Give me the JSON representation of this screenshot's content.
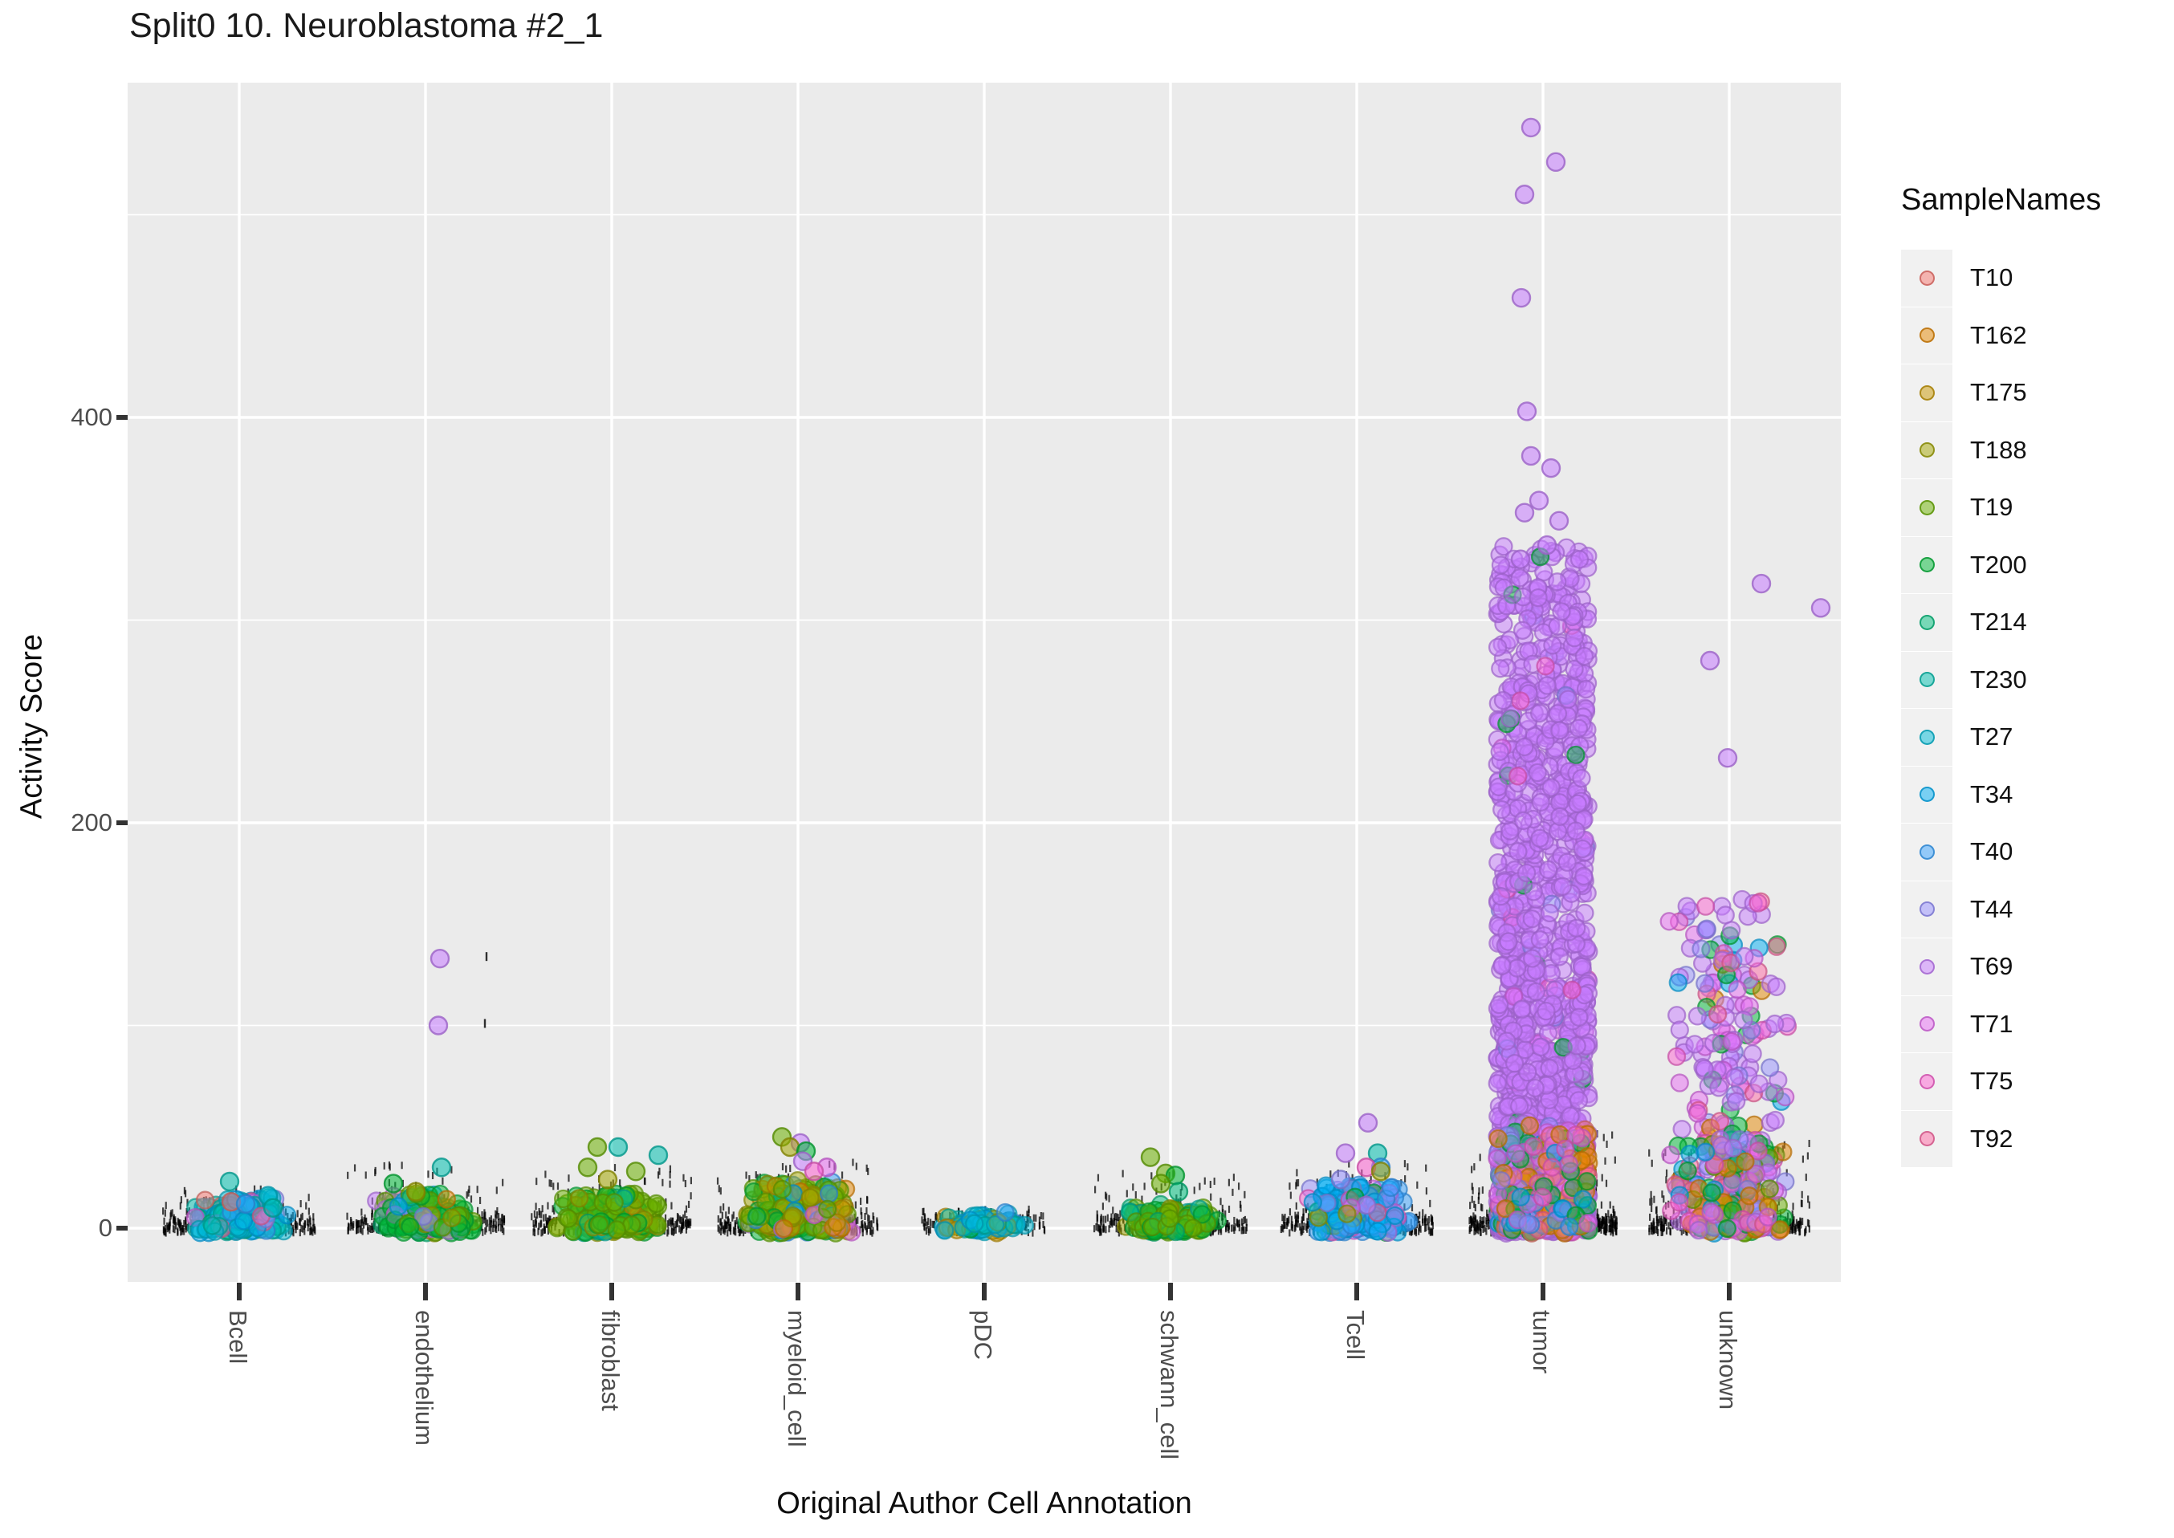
{
  "chart_data": {
    "type": "scatter",
    "subtype": "jittered-strip-plot",
    "title": "Split0 10. Neuroblastoma #2_1",
    "xlabel": "Original Author Cell Annotation",
    "ylabel": "Activity Score",
    "legend_title": "SampleNames",
    "ylim": [
      -27,
      565
    ],
    "y_tick_labels": [
      "0",
      "200",
      "400"
    ],
    "y_major_gridlines": [
      0,
      200,
      400
    ],
    "y_minor_gridlines": [
      100,
      300,
      500
    ],
    "panel_background": "#EBEBEB",
    "gridline_color": "#FFFFFF",
    "tick_color": "#333333",
    "rug_point_color": "#000000",
    "point_alpha": 0.5,
    "categories": [
      "Bcell",
      "endothelium",
      "fibroblast",
      "myeloid_cell",
      "pDC",
      "schwann_cell",
      "Tcell",
      "tumor",
      "unknown"
    ],
    "samples": [
      {
        "name": "T10",
        "color": "#F8766D"
      },
      {
        "name": "T162",
        "color": "#E58700"
      },
      {
        "name": "T175",
        "color": "#C99800"
      },
      {
        "name": "T188",
        "color": "#A3A500"
      },
      {
        "name": "T19",
        "color": "#6BB100"
      },
      {
        "name": "T200",
        "color": "#00BA38"
      },
      {
        "name": "T214",
        "color": "#00BF7D"
      },
      {
        "name": "T230",
        "color": "#00C0AF"
      },
      {
        "name": "T27",
        "color": "#00BCD8"
      },
      {
        "name": "T34",
        "color": "#00B0F6"
      },
      {
        "name": "T40",
        "color": "#35A2FF"
      },
      {
        "name": "T44",
        "color": "#9590FF"
      },
      {
        "name": "T69",
        "color": "#C77CFF"
      },
      {
        "name": "T71",
        "color": "#E76BF3"
      },
      {
        "name": "T75",
        "color": "#FD61D1"
      },
      {
        "name": "T92",
        "color": "#FF67A4"
      }
    ],
    "groups": [
      {
        "category": "Bcell",
        "layers": [
          {
            "n": 170,
            "ymax": 14,
            "power": 2.2,
            "halfwidth": 62,
            "xdist": "tri",
            "mix": {
              "T27": 0.3,
              "T230": 0.22,
              "T34": 0.18,
              "T40": 0.08,
              "T214": 0.06,
              "T44": 0.05,
              "T92": 0.04,
              "T10": 0.04,
              "T71": 0.03
            }
          }
        ],
        "outliers": [
          {
            "sample": "T230",
            "value": 23,
            "dx": -12
          },
          {
            "sample": "T27",
            "value": 16,
            "dx": 36
          },
          {
            "sample": "T34",
            "value": 14,
            "dx": -4
          },
          {
            "sample": "T10",
            "value": 13,
            "dx": -10
          },
          {
            "sample": "T40",
            "value": 12,
            "dx": 8
          },
          {
            "sample": "T230",
            "value": 10,
            "dx": 42
          }
        ],
        "rug": {
          "n": 260,
          "halfwidth": 95,
          "hair_max": 20
        },
        "rug_outliers": []
      },
      {
        "category": "endothelium",
        "layers": [
          {
            "n": 200,
            "ymax": 16,
            "power": 2.4,
            "halfwidth": 66,
            "xdist": "tri",
            "mix": {
              "T200": 0.42,
              "T19": 0.14,
              "T188": 0.08,
              "T69": 0.08,
              "T44": 0.07,
              "T34": 0.06,
              "T214": 0.06,
              "T10": 0.04,
              "T71": 0.03,
              "T162": 0.02
            }
          }
        ],
        "outliers": [
          {
            "sample": "T69",
            "value": 133,
            "dx": 18
          },
          {
            "sample": "T69",
            "value": 100,
            "dx": 16
          },
          {
            "sample": "T230",
            "value": 30,
            "dx": 20
          },
          {
            "sample": "T200",
            "value": 22,
            "dx": -40
          },
          {
            "sample": "T188",
            "value": 18,
            "dx": -12
          }
        ],
        "rug": {
          "n": 300,
          "halfwidth": 98,
          "hair_max": 32
        },
        "rug_outliers": [
          {
            "value": 134,
            "dx": 76
          },
          {
            "value": 101,
            "dx": 74
          }
        ]
      },
      {
        "category": "fibroblast",
        "layers": [
          {
            "n": 230,
            "ymax": 15,
            "power": 2.0,
            "halfwidth": 70,
            "xdist": "tri",
            "mix": {
              "T19": 0.5,
              "T200": 0.2,
              "T188": 0.14,
              "T230": 0.06,
              "T214": 0.06,
              "T175": 0.04
            }
          }
        ],
        "outliers": [
          {
            "sample": "T230",
            "value": 40,
            "dx": 8
          },
          {
            "sample": "T19",
            "value": 40,
            "dx": -18
          },
          {
            "sample": "T230",
            "value": 36,
            "dx": 58
          },
          {
            "sample": "T19",
            "value": 30,
            "dx": -30
          },
          {
            "sample": "T19",
            "value": 28,
            "dx": 30
          },
          {
            "sample": "T188",
            "value": 24,
            "dx": -5
          }
        ],
        "rug": {
          "n": 300,
          "halfwidth": 100,
          "hair_max": 30
        },
        "rug_outliers": []
      },
      {
        "category": "myeloid_cell",
        "layers": [
          {
            "n": 300,
            "ymax": 22,
            "power": 2.2,
            "halfwidth": 72,
            "xdist": "tri",
            "mix": {
              "T19": 0.28,
              "T188": 0.2,
              "T200": 0.14,
              "T162": 0.12,
              "T175": 0.08,
              "T34": 0.05,
              "T40": 0.05,
              "T69": 0.04,
              "T71": 0.04
            }
          }
        ],
        "outliers": [
          {
            "sample": "T19",
            "value": 45,
            "dx": -20
          },
          {
            "sample": "T69",
            "value": 42,
            "dx": 3
          },
          {
            "sample": "T188",
            "value": 40,
            "dx": -10
          },
          {
            "sample": "T200",
            "value": 38,
            "dx": 10
          },
          {
            "sample": "T69",
            "value": 33,
            "dx": 6
          },
          {
            "sample": "T71",
            "value": 30,
            "dx": 36
          },
          {
            "sample": "T75",
            "value": 28,
            "dx": 20
          }
        ],
        "rug": {
          "n": 340,
          "halfwidth": 100,
          "hair_max": 34
        },
        "rug_outliers": []
      },
      {
        "category": "pDC",
        "layers": [
          {
            "n": 90,
            "ymax": 6,
            "power": 1.8,
            "halfwidth": 55,
            "xdist": "tri",
            "mix": {
              "T27": 0.45,
              "T230": 0.12,
              "T188": 0.1,
              "T162": 0.08,
              "T34": 0.08,
              "T200": 0.06,
              "T175": 0.06,
              "T40": 0.05
            }
          }
        ],
        "outliers": [],
        "rug": {
          "n": 150,
          "halfwidth": 78,
          "hair_max": 10
        },
        "rug_outliers": []
      },
      {
        "category": "schwann_cell",
        "layers": [
          {
            "n": 180,
            "ymax": 10,
            "power": 2.2,
            "halfwidth": 62,
            "xdist": "tri",
            "mix": {
              "T19": 0.52,
              "T200": 0.26,
              "T214": 0.08,
              "T188": 0.08,
              "T230": 0.06
            }
          }
        ],
        "outliers": [
          {
            "sample": "T19",
            "value": 35,
            "dx": -25
          },
          {
            "sample": "T19",
            "value": 27,
            "dx": -6
          },
          {
            "sample": "T200",
            "value": 26,
            "dx": 6
          },
          {
            "sample": "T19",
            "value": 22,
            "dx": -12
          },
          {
            "sample": "T214",
            "value": 18,
            "dx": 10
          }
        ],
        "rug": {
          "n": 280,
          "halfwidth": 95,
          "hair_max": 28
        },
        "rug_outliers": []
      },
      {
        "category": "Tcell",
        "layers": [
          {
            "n": 260,
            "ymax": 20,
            "power": 2.2,
            "halfwidth": 66,
            "xdist": "tri",
            "mix": {
              "T34": 0.28,
              "T40": 0.26,
              "T71": 0.1,
              "T75": 0.08,
              "T44": 0.08,
              "T200": 0.08,
              "T188": 0.05,
              "T69": 0.04,
              "T92": 0.03
            }
          }
        ],
        "outliers": [
          {
            "sample": "T69",
            "value": 52,
            "dx": 14
          },
          {
            "sample": "T69",
            "value": 37,
            "dx": -14
          },
          {
            "sample": "T230",
            "value": 37,
            "dx": 26
          },
          {
            "sample": "T40",
            "value": 30,
            "dx": 30
          },
          {
            "sample": "T75",
            "value": 30,
            "dx": 12
          },
          {
            "sample": "T188",
            "value": 28,
            "dx": 30
          },
          {
            "sample": "T44",
            "value": 24,
            "dx": -20
          }
        ],
        "rug": {
          "n": 300,
          "halfwidth": 95,
          "hair_max": 32
        },
        "rug_outliers": []
      },
      {
        "category": "tumor",
        "layers": [
          {
            "n": 1500,
            "ymax": 335,
            "power": 2.0,
            "halfwidth": 57,
            "xdist": "uniform",
            "mix": {
              "T69": 0.96,
              "T71": 0.01,
              "T75": 0.01,
              "T200": 0.01,
              "T44": 0.01
            }
          },
          {
            "n": 260,
            "ymax": 50,
            "power": 1.7,
            "halfwidth": 57,
            "xdist": "uniform",
            "mix": {
              "T162": 0.2,
              "T71": 0.17,
              "T75": 0.14,
              "T200": 0.14,
              "T34": 0.08,
              "T40": 0.08,
              "T44": 0.07,
              "T92": 0.06,
              "T10": 0.06
            }
          }
        ],
        "outliers": [
          {
            "sample": "T69",
            "value": 543,
            "dx": -15
          },
          {
            "sample": "T69",
            "value": 526,
            "dx": 16
          },
          {
            "sample": "T69",
            "value": 510,
            "dx": -23
          },
          {
            "sample": "T69",
            "value": 459,
            "dx": -27
          },
          {
            "sample": "T69",
            "value": 403,
            "dx": -20
          },
          {
            "sample": "T69",
            "value": 381,
            "dx": -15
          },
          {
            "sample": "T69",
            "value": 375,
            "dx": 10
          },
          {
            "sample": "T69",
            "value": 359,
            "dx": -5
          },
          {
            "sample": "T69",
            "value": 353,
            "dx": -23
          },
          {
            "sample": "T69",
            "value": 349,
            "dx": 20
          },
          {
            "sample": "T69",
            "value": 337,
            "dx": 5
          },
          {
            "sample": "T69",
            "value": 330,
            "dx": -28
          }
        ],
        "rug": {
          "n": 560,
          "halfwidth": 92,
          "hair_max": 48
        },
        "rug_outliers": []
      },
      {
        "category": "unknown",
        "layers": [
          {
            "n": 270,
            "ymax": 162,
            "power": 1.7,
            "halfwidth": 82,
            "xdist": "tri",
            "mix": {
              "T69": 0.55,
              "T71": 0.13,
              "T75": 0.1,
              "T44": 0.07,
              "T200": 0.05,
              "T34": 0.04,
              "T92": 0.03,
              "T162": 0.03
            }
          },
          {
            "n": 170,
            "ymax": 45,
            "power": 1.8,
            "halfwidth": 80,
            "xdist": "tri",
            "mix": {
              "T162": 0.16,
              "T200": 0.16,
              "T71": 0.14,
              "T75": 0.12,
              "T34": 0.1,
              "T44": 0.08,
              "T92": 0.07,
              "T19": 0.07,
              "T69": 0.1
            }
          }
        ],
        "outliers": [
          {
            "sample": "T69",
            "value": 318,
            "dx": 40
          },
          {
            "sample": "T69",
            "value": 306,
            "dx": 114
          },
          {
            "sample": "T69",
            "value": 280,
            "dx": -24
          },
          {
            "sample": "T69",
            "value": 232,
            "dx": -2
          }
        ],
        "rug": {
          "n": 430,
          "halfwidth": 100,
          "hair_max": 42
        },
        "rug_outliers": []
      }
    ]
  }
}
